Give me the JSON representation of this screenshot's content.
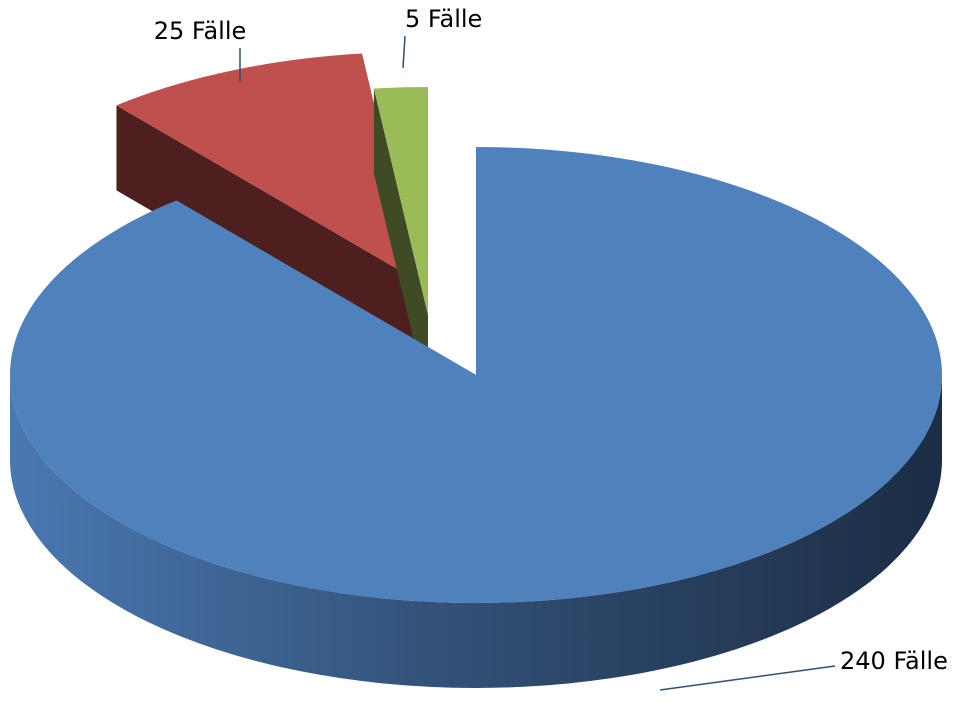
{
  "chart_data": {
    "type": "pie",
    "title": null,
    "categories": [
      null,
      null,
      null
    ],
    "values": [
      240,
      25,
      5
    ],
    "value_labels": [
      "240 Fälle",
      "25 Fälle",
      "5 Fälle"
    ],
    "colors": [
      "#4f81bd",
      "#c0504d",
      "#9bbb59"
    ]
  }
}
